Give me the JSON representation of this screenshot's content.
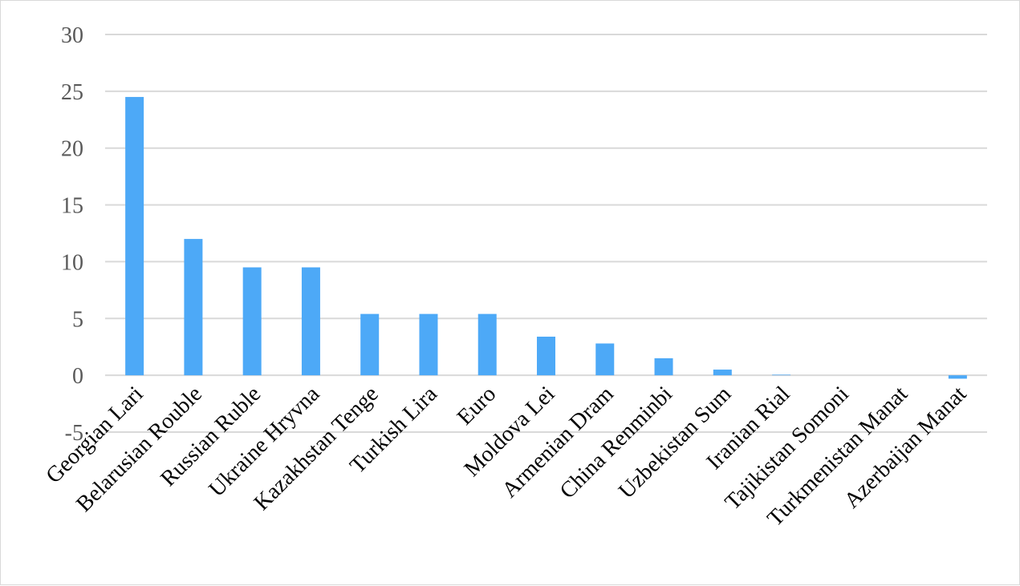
{
  "chart_data": {
    "type": "bar",
    "title": "",
    "xlabel": "",
    "ylabel": "",
    "categories": [
      "Georgian Lari",
      "Belarusian Rouble",
      "Russian Ruble",
      "Ukraine Hryvna",
      "Kazakhstan Tenge",
      "Turkish Lira",
      "Euro",
      "Moldova Lei",
      "Armenian Dram",
      "China Renminbi",
      "Uzbekistan Sum",
      "Iranian Rial",
      "Tajikistan Somoni",
      "Turkmenistan Manat",
      "Azerbaijan Manat"
    ],
    "values": [
      24.5,
      12.0,
      9.5,
      9.5,
      5.4,
      5.4,
      5.4,
      3.4,
      2.8,
      1.5,
      0.5,
      0.05,
      0,
      0,
      -0.3
    ],
    "ylim": [
      -5,
      30
    ],
    "yticks": [
      -5,
      0,
      5,
      10,
      15,
      20,
      25,
      30
    ],
    "ytick_labels": [
      "-5",
      "0",
      "5",
      "10",
      "15",
      "20",
      "25",
      "30"
    ],
    "grid": true,
    "legend": "none",
    "bar_color": "#4da9f7",
    "grid_color": "#d9d9d9"
  }
}
